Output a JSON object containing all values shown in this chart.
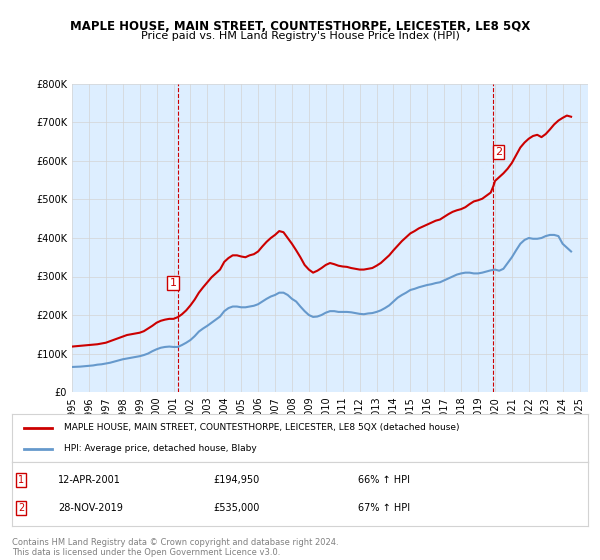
{
  "title": "MAPLE HOUSE, MAIN STREET, COUNTESTHORPE, LEICESTER, LE8 5QX",
  "subtitle": "Price paid vs. HM Land Registry's House Price Index (HPI)",
  "legend_line1": "MAPLE HOUSE, MAIN STREET, COUNTESTHORPE, LEICESTER, LE8 5QX (detached house)",
  "legend_line2": "HPI: Average price, detached house, Blaby",
  "annotation1": {
    "label": "1",
    "date": "12-APR-2001",
    "price": "£194,950",
    "pct": "66% ↑ HPI"
  },
  "annotation2": {
    "label": "2",
    "date": "28-NOV-2019",
    "price": "£535,000",
    "pct": "67% ↑ HPI"
  },
  "footnote": "Contains HM Land Registry data © Crown copyright and database right 2024.\nThis data is licensed under the Open Government Licence v3.0.",
  "red_color": "#cc0000",
  "blue_color": "#6699cc",
  "background_color": "#ddeeff",
  "plot_bg_color": "#ddeeff",
  "ylim": [
    0,
    800000
  ],
  "xlim_start": 1995.0,
  "xlim_end": 2025.5,
  "marker1_x": 2001.278,
  "marker1_y": 194950,
  "marker2_x": 2019.91,
  "marker2_y": 535000,
  "hpi_x": [
    1995,
    1995.25,
    1995.5,
    1995.75,
    1996,
    1996.25,
    1996.5,
    1996.75,
    1997,
    1997.25,
    1997.5,
    1997.75,
    1998,
    1998.25,
    1998.5,
    1998.75,
    1999,
    1999.25,
    1999.5,
    1999.75,
    2000,
    2000.25,
    2000.5,
    2000.75,
    2001,
    2001.25,
    2001.5,
    2001.75,
    2002,
    2002.25,
    2002.5,
    2002.75,
    2003,
    2003.25,
    2003.5,
    2003.75,
    2004,
    2004.25,
    2004.5,
    2004.75,
    2005,
    2005.25,
    2005.5,
    2005.75,
    2006,
    2006.25,
    2006.5,
    2006.75,
    2007,
    2007.25,
    2007.5,
    2007.75,
    2008,
    2008.25,
    2008.5,
    2008.75,
    2009,
    2009.25,
    2009.5,
    2009.75,
    2010,
    2010.25,
    2010.5,
    2010.75,
    2011,
    2011.25,
    2011.5,
    2011.75,
    2012,
    2012.25,
    2012.5,
    2012.75,
    2013,
    2013.25,
    2013.5,
    2013.75,
    2014,
    2014.25,
    2014.5,
    2014.75,
    2015,
    2015.25,
    2015.5,
    2015.75,
    2016,
    2016.25,
    2016.5,
    2016.75,
    2017,
    2017.25,
    2017.5,
    2017.75,
    2018,
    2018.25,
    2018.5,
    2018.75,
    2019,
    2019.25,
    2019.5,
    2019.75,
    2020,
    2020.25,
    2020.5,
    2020.75,
    2021,
    2021.25,
    2021.5,
    2021.75,
    2022,
    2022.25,
    2022.5,
    2022.75,
    2023,
    2023.25,
    2023.5,
    2023.75,
    2024,
    2024.25,
    2024.5
  ],
  "hpi_y": [
    65000,
    65500,
    66000,
    67000,
    68000,
    69000,
    71000,
    72000,
    74000,
    76000,
    79000,
    82000,
    85000,
    87000,
    89000,
    91000,
    93000,
    96000,
    100000,
    106000,
    111000,
    115000,
    117000,
    118000,
    117000,
    117000,
    122000,
    128000,
    135000,
    145000,
    157000,
    165000,
    172000,
    180000,
    188000,
    196000,
    210000,
    218000,
    222000,
    222000,
    220000,
    220000,
    222000,
    224000,
    228000,
    235000,
    242000,
    248000,
    252000,
    258000,
    258000,
    252000,
    242000,
    235000,
    222000,
    210000,
    200000,
    195000,
    196000,
    200000,
    206000,
    210000,
    210000,
    208000,
    208000,
    208000,
    207000,
    205000,
    203000,
    202000,
    204000,
    205000,
    208000,
    212000,
    218000,
    225000,
    235000,
    245000,
    252000,
    258000,
    265000,
    268000,
    272000,
    275000,
    278000,
    280000,
    283000,
    285000,
    290000,
    295000,
    300000,
    305000,
    308000,
    310000,
    310000,
    308000,
    308000,
    310000,
    313000,
    316000,
    318000,
    315000,
    320000,
    335000,
    350000,
    368000,
    385000,
    395000,
    400000,
    398000,
    398000,
    400000,
    405000,
    408000,
    408000,
    405000,
    385000,
    375000,
    365000
  ],
  "red_x": [
    1995.0,
    1995.25,
    1995.5,
    1995.75,
    1996.0,
    1996.25,
    1996.5,
    1996.75,
    1997.0,
    1997.25,
    1997.5,
    1997.75,
    1998.0,
    1998.25,
    1998.5,
    1998.75,
    1999.0,
    1999.25,
    1999.5,
    1999.75,
    2000.0,
    2000.25,
    2000.5,
    2000.75,
    2001.0,
    2001.278,
    2001.5,
    2001.75,
    2002.0,
    2002.25,
    2002.5,
    2002.75,
    2003.0,
    2003.25,
    2003.5,
    2003.75,
    2004.0,
    2004.25,
    2004.5,
    2004.75,
    2005.0,
    2005.25,
    2005.5,
    2005.75,
    2006.0,
    2006.25,
    2006.5,
    2006.75,
    2007.0,
    2007.25,
    2007.5,
    2007.75,
    2008.0,
    2008.25,
    2008.5,
    2008.75,
    2009.0,
    2009.25,
    2009.5,
    2009.75,
    2010.0,
    2010.25,
    2010.5,
    2010.75,
    2011.0,
    2011.25,
    2011.5,
    2011.75,
    2012.0,
    2012.25,
    2012.5,
    2012.75,
    2013.0,
    2013.25,
    2013.5,
    2013.75,
    2014.0,
    2014.25,
    2014.5,
    2014.75,
    2015.0,
    2015.25,
    2015.5,
    2015.75,
    2016.0,
    2016.25,
    2016.5,
    2016.75,
    2017.0,
    2017.25,
    2017.5,
    2017.75,
    2018.0,
    2018.25,
    2018.5,
    2018.75,
    2019.0,
    2019.25,
    2019.5,
    2019.75,
    2019.91,
    2020.0,
    2020.25,
    2020.5,
    2020.75,
    2021.0,
    2021.25,
    2021.5,
    2021.75,
    2022.0,
    2022.25,
    2022.5,
    2022.75,
    2023.0,
    2023.25,
    2023.5,
    2023.75,
    2024.0,
    2024.25,
    2024.5
  ],
  "red_y": [
    118000,
    119000,
    120000,
    121000,
    122000,
    123000,
    124000,
    126000,
    128000,
    132000,
    136000,
    140000,
    144000,
    148000,
    150000,
    152000,
    154000,
    158000,
    165000,
    172000,
    180000,
    185000,
    188000,
    190000,
    190000,
    194950,
    202000,
    212000,
    225000,
    240000,
    258000,
    272000,
    285000,
    298000,
    308000,
    318000,
    338000,
    348000,
    355000,
    355000,
    352000,
    350000,
    355000,
    358000,
    365000,
    378000,
    390000,
    400000,
    408000,
    418000,
    415000,
    400000,
    385000,
    368000,
    350000,
    330000,
    318000,
    310000,
    315000,
    322000,
    330000,
    335000,
    332000,
    328000,
    326000,
    325000,
    322000,
    320000,
    318000,
    318000,
    320000,
    322000,
    328000,
    335000,
    345000,
    355000,
    368000,
    380000,
    392000,
    402000,
    412000,
    418000,
    425000,
    430000,
    435000,
    440000,
    445000,
    448000,
    455000,
    462000,
    468000,
    472000,
    475000,
    480000,
    488000,
    495000,
    498000,
    502000,
    510000,
    518000,
    535000,
    548000,
    558000,
    568000,
    580000,
    595000,
    615000,
    635000,
    648000,
    658000,
    665000,
    668000,
    662000,
    670000,
    682000,
    695000,
    705000,
    712000,
    718000,
    715000
  ]
}
